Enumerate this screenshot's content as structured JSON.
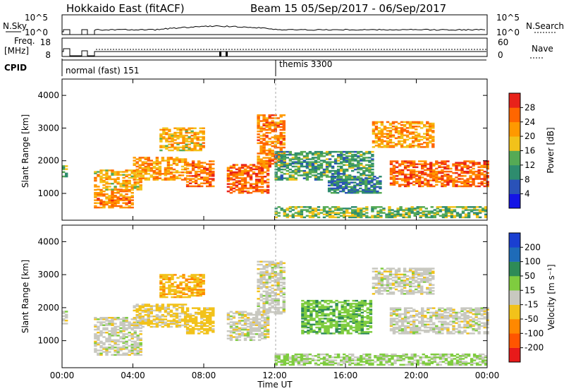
{
  "header": {
    "station": "Hokkaido East (fitACF)",
    "beam_dates": "Beam 15  05/Sep/2017 - 06/Sep/2017"
  },
  "strips": {
    "nsky_label": "N.Sky",
    "nsearch_label": "N.Search",
    "freq_label_1": "Freq.",
    "freq_label_2": "[MHz]",
    "nave_label": "Nave",
    "cpid_label": "CPID",
    "noise_left_ticks": [
      "10^5",
      "10^0"
    ],
    "noise_right_ticks": [
      "10^5",
      "10^0"
    ],
    "freq_left_ticks": [
      "18",
      "8"
    ],
    "freq_right_ticks": [
      "60",
      "0"
    ],
    "cpid_modes": [
      {
        "label": "normal (fast) 151",
        "start_h": 0,
        "end_h": 12
      },
      {
        "label": "themis 3300",
        "start_h": 12,
        "end_h": 24
      }
    ]
  },
  "colorbars": {
    "power": {
      "label": "Power [dB]",
      "ticks": [
        "4",
        "8",
        "12",
        "16",
        "20",
        "24",
        "28"
      ],
      "colors": [
        "#1414e6",
        "#2a52b8",
        "#2e8c6e",
        "#55aa55",
        "#f2c21a",
        "#ff9900",
        "#ff6600",
        "#e8221a"
      ]
    },
    "velocity": {
      "label": "Velocity [m s⁻¹]",
      "ticks": [
        "200",
        "100",
        "50",
        "15",
        "-15",
        "-50",
        "-100",
        "-200"
      ],
      "colors": [
        "#1a3fd1",
        "#1e6bb8",
        "#2e8b57",
        "#7fcc3f",
        "#c8c8c0",
        "#f2c21a",
        "#ff8800",
        "#ff5500",
        "#e81a1a"
      ]
    }
  },
  "axes": {
    "xlabel": "Time UT",
    "ylabel": "Slant Range [km]",
    "xticks": [
      "00:00",
      "04:00",
      "08:00",
      "12:00",
      "16:00",
      "20:00",
      "00:00"
    ],
    "yticks": [
      "1000",
      "2000",
      "3000",
      "4000"
    ]
  },
  "chart_data": [
    {
      "type": "heatmap",
      "title": "Power [dB]",
      "xlabel": "Time UT",
      "ylabel": "Slant Range [km]",
      "xlim_h": [
        0,
        24
      ],
      "ylim_km": [
        180,
        4500
      ],
      "echo_regions": [
        {
          "t0": 0.0,
          "t1": 0.3,
          "r0": 1500,
          "r1": 1900,
          "value": 12
        },
        {
          "t0": 1.8,
          "t1": 4.0,
          "r0": 550,
          "r1": 1100,
          "value": 24
        },
        {
          "t0": 1.8,
          "t1": 4.5,
          "r0": 1100,
          "r1": 1700,
          "value": 20
        },
        {
          "t0": 4.0,
          "t1": 7.0,
          "r0": 1400,
          "r1": 2100,
          "value": 22
        },
        {
          "t0": 5.5,
          "t1": 8.0,
          "r0": 2300,
          "r1": 3000,
          "value": 20
        },
        {
          "t0": 7.0,
          "t1": 8.6,
          "r0": 1200,
          "r1": 2000,
          "value": 25
        },
        {
          "t0": 9.3,
          "t1": 11.6,
          "r0": 1000,
          "r1": 1900,
          "value": 26
        },
        {
          "t0": 11.0,
          "t1": 12.6,
          "r0": 1800,
          "r1": 3400,
          "value": 24
        },
        {
          "t0": 12.0,
          "t1": 17.5,
          "r0": 1400,
          "r1": 2300,
          "value": 12
        },
        {
          "t0": 15.0,
          "t1": 18.0,
          "r0": 1000,
          "r1": 1500,
          "value": 10
        },
        {
          "t0": 17.5,
          "t1": 21.0,
          "r0": 2400,
          "r1": 3200,
          "value": 22
        },
        {
          "t0": 18.5,
          "t1": 24.0,
          "r0": 1200,
          "r1": 2000,
          "value": 26
        },
        {
          "t0": 12.0,
          "t1": 24.0,
          "r0": 250,
          "r1": 600,
          "value": 14
        }
      ]
    },
    {
      "type": "heatmap",
      "title": "Velocity [m s⁻¹]",
      "xlabel": "Time UT",
      "ylabel": "Slant Range [km]",
      "xlim_h": [
        0,
        24
      ],
      "ylim_km": [
        180,
        4500
      ],
      "echo_regions": [
        {
          "t0": 0.0,
          "t1": 0.3,
          "r0": 1500,
          "r1": 1900,
          "value": 0
        },
        {
          "t0": 1.8,
          "t1": 4.5,
          "r0": 550,
          "r1": 1700,
          "value": 0
        },
        {
          "t0": 4.0,
          "t1": 7.0,
          "r0": 1400,
          "r1": 2100,
          "value": -20
        },
        {
          "t0": 5.5,
          "t1": 8.0,
          "r0": 2300,
          "r1": 3000,
          "value": -40
        },
        {
          "t0": 7.0,
          "t1": 8.6,
          "r0": 1200,
          "r1": 2000,
          "value": -30
        },
        {
          "t0": 9.3,
          "t1": 11.6,
          "r0": 1000,
          "r1": 1900,
          "value": 0
        },
        {
          "t0": 11.0,
          "t1": 12.6,
          "r0": 1800,
          "r1": 3400,
          "value": 0
        },
        {
          "t0": 13.5,
          "t1": 17.5,
          "r0": 1200,
          "r1": 2200,
          "value": 40
        },
        {
          "t0": 17.5,
          "t1": 21.0,
          "r0": 2400,
          "r1": 3200,
          "value": 0
        },
        {
          "t0": 18.5,
          "t1": 24.0,
          "r0": 1200,
          "r1": 2000,
          "value": 0
        },
        {
          "t0": 12.0,
          "t1": 24.0,
          "r0": 250,
          "r1": 600,
          "value": 20
        }
      ]
    }
  ]
}
